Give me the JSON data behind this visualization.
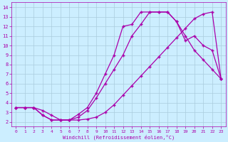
{
  "bg_color": "#cceeff",
  "grid_color": "#aaccdd",
  "line_color": "#aa00aa",
  "marker": "+",
  "xlim": [
    -0.5,
    23.5
  ],
  "ylim": [
    1.5,
    14.5
  ],
  "xticks": [
    0,
    1,
    2,
    3,
    4,
    5,
    6,
    7,
    8,
    9,
    10,
    11,
    12,
    13,
    14,
    15,
    16,
    17,
    18,
    19,
    20,
    21,
    22,
    23
  ],
  "yticks": [
    2,
    3,
    4,
    5,
    6,
    7,
    8,
    9,
    10,
    11,
    12,
    13,
    14
  ],
  "xlabel": "Windchill (Refroidissement éolien,°C)",
  "line1_x": [
    0,
    1,
    2,
    3,
    4,
    5,
    6,
    7,
    8,
    9,
    10,
    11,
    12,
    13,
    14,
    15,
    16,
    17,
    18,
    19,
    20,
    21,
    22,
    23
  ],
  "line1_y": [
    3.5,
    3.5,
    3.5,
    2.7,
    2.2,
    2.2,
    2.2,
    2.2,
    2.3,
    2.5,
    3.0,
    3.8,
    4.8,
    5.8,
    6.8,
    7.8,
    8.8,
    9.8,
    10.8,
    11.8,
    12.8,
    13.3,
    13.5,
    6.5
  ],
  "line2_x": [
    0,
    1,
    2,
    3,
    4,
    5,
    6,
    7,
    8,
    9,
    10,
    11,
    12,
    13,
    14,
    15,
    16,
    17,
    18,
    19,
    20,
    21,
    22,
    23
  ],
  "line2_y": [
    3.5,
    3.5,
    3.5,
    2.7,
    2.2,
    2.2,
    2.2,
    2.5,
    3.2,
    4.5,
    6.0,
    7.5,
    9.0,
    11.0,
    12.2,
    13.5,
    13.5,
    13.5,
    12.5,
    11.0,
    9.5,
    8.5,
    7.5,
    6.5
  ],
  "line3_x": [
    0,
    1,
    2,
    3,
    4,
    5,
    6,
    7,
    8,
    9,
    10,
    11,
    12,
    13,
    14,
    15,
    16,
    17,
    18,
    19,
    20,
    21,
    22,
    23
  ],
  "line3_y": [
    3.5,
    3.5,
    3.5,
    3.2,
    2.7,
    2.2,
    2.2,
    2.8,
    3.5,
    5.0,
    7.0,
    9.0,
    12.0,
    12.2,
    13.5,
    13.5,
    13.5,
    13.5,
    12.5,
    10.5,
    11.0,
    10.0,
    9.5,
    6.5
  ]
}
